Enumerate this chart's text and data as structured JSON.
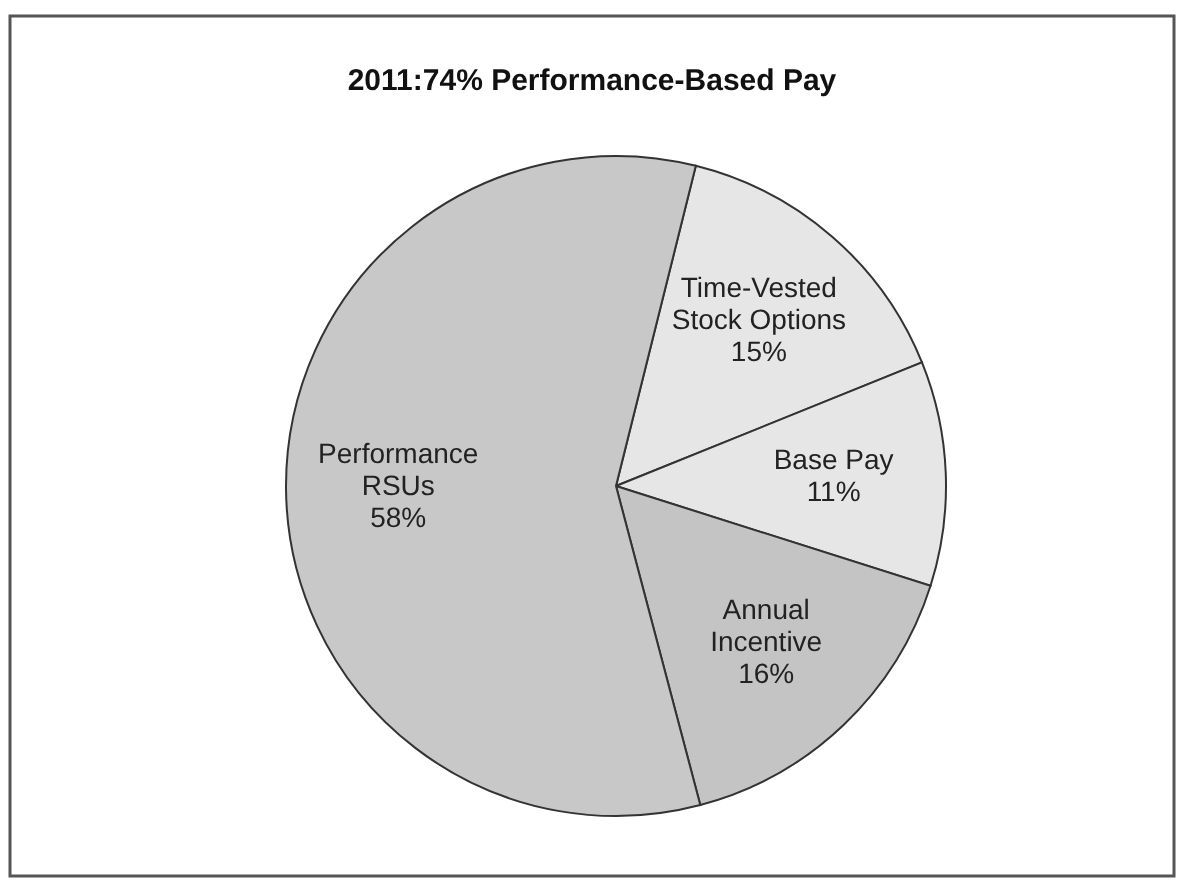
{
  "chart_data": {
    "type": "pie",
    "title": "2011:74% Performance-Based Pay",
    "categories": [
      "Time-Vested\nStock Options",
      "Base Pay",
      "Annual\nIncentive",
      "Performance\nRSUs"
    ],
    "values": [
      15,
      11,
      16,
      58
    ],
    "colors": [
      "#e6e6e6",
      "#e6e6e6",
      "#c4c4c4",
      "#c8c8c8"
    ],
    "value_labels": [
      "15%",
      "11%",
      "16%",
      "58%"
    ]
  }
}
